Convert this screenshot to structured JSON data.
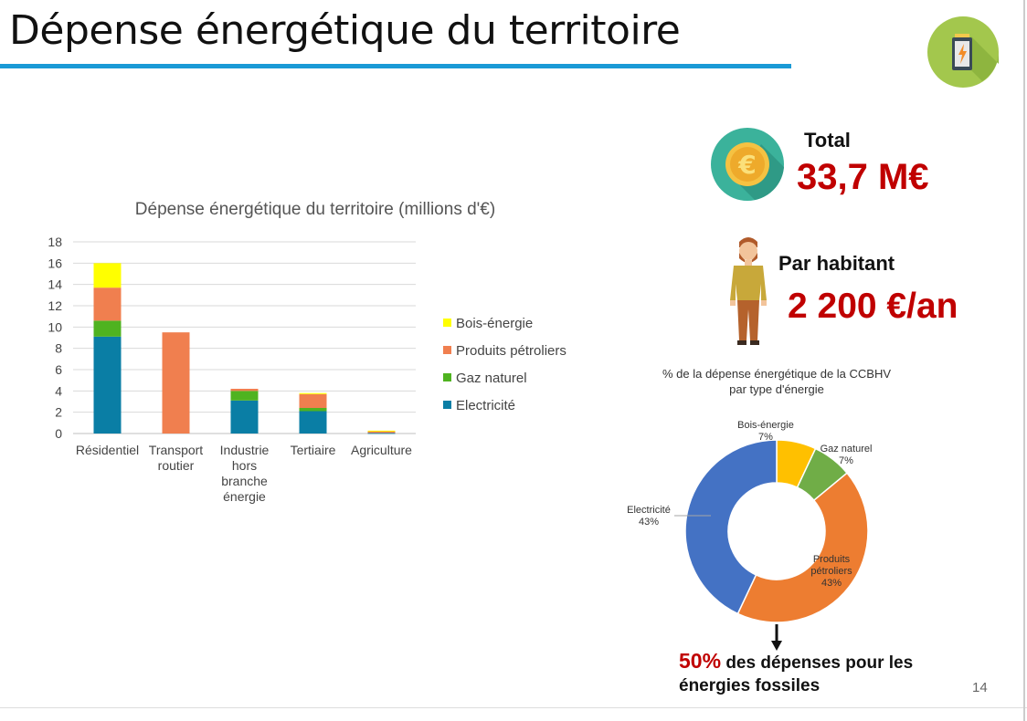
{
  "page": {
    "title": "Dépense énergétique du territoire",
    "page_number": "14"
  },
  "colors": {
    "title_rule": "#1a9ad6",
    "kpi_value": "#c00000",
    "bois_energie": "#ffff00",
    "produits_petroliers": "#f07f4f",
    "gaz_naturel": "#4fb320",
    "electricite": "#0a7ea5",
    "donut_electricite": "#4472c4",
    "donut_petroliers": "#ed7d31",
    "donut_gaz": "#70ad47",
    "donut_bois": "#ffc000"
  },
  "icons": {
    "corner": "battery-icon",
    "total": "euro-coin-icon",
    "per_capita": "person-icon"
  },
  "kpis": {
    "total": {
      "label": "Total",
      "value": "33,7 M€"
    },
    "per_capita": {
      "label": "Par habitant",
      "value": "2 200 €/an"
    }
  },
  "conclusion": {
    "percent": "50%",
    "text": " des dépenses pour les énergies fossiles"
  },
  "chart_data": [
    {
      "type": "bar",
      "stacked": true,
      "title": "Dépense énergétique du territoire (millions d'€)",
      "categories": [
        "Résidentiel",
        "Transport routier",
        "Industrie hors branche énergie",
        "Tertiaire",
        "Agriculture"
      ],
      "category_lines": [
        [
          "Résidentiel"
        ],
        [
          "Transport",
          "routier"
        ],
        [
          "Industrie",
          "hors",
          "branche",
          "énergie"
        ],
        [
          "Tertiaire"
        ],
        [
          "Agriculture"
        ]
      ],
      "series": [
        {
          "name": "Electricité",
          "color": "#0a7ea5",
          "values": [
            9.1,
            0,
            3.1,
            2.1,
            0.05
          ]
        },
        {
          "name": "Gaz naturel",
          "color": "#4fb320",
          "values": [
            1.5,
            0,
            0.9,
            0.3,
            0
          ]
        },
        {
          "name": "Produits pétroliers",
          "color": "#f07f4f",
          "values": [
            3.1,
            9.5,
            0.2,
            1.3,
            0.2
          ]
        },
        {
          "name": "Bois-énergie",
          "color": "#ffff00",
          "values": [
            2.3,
            0,
            0,
            0.1,
            0.02
          ]
        }
      ],
      "legend_order": [
        "Bois-énergie",
        "Produits pétroliers",
        "Gaz naturel",
        "Electricité"
      ],
      "ylim": [
        0,
        18
      ],
      "yticks": [
        0,
        2,
        4,
        6,
        8,
        10,
        12,
        14,
        16,
        18
      ],
      "grid": true,
      "legend_position": "right"
    },
    {
      "type": "pie",
      "donut": true,
      "title_lines": [
        "% de la dépense énergétique de la CCBHV",
        "par type d'énergie"
      ],
      "slices": [
        {
          "label": "Bois-énergie",
          "value": 7,
          "pct_label": "7%",
          "color": "#ffc000"
        },
        {
          "label": "Gaz naturel",
          "value": 7,
          "pct_label": "7%",
          "color": "#70ad47"
        },
        {
          "label": "Produits pétroliers",
          "label_lines": [
            "Produits",
            "pétroliers"
          ],
          "value": 43,
          "pct_label": "43%",
          "color": "#ed7d31"
        },
        {
          "label": "Electricité",
          "value": 43,
          "pct_label": "43%",
          "color": "#4472c4"
        }
      ]
    }
  ]
}
